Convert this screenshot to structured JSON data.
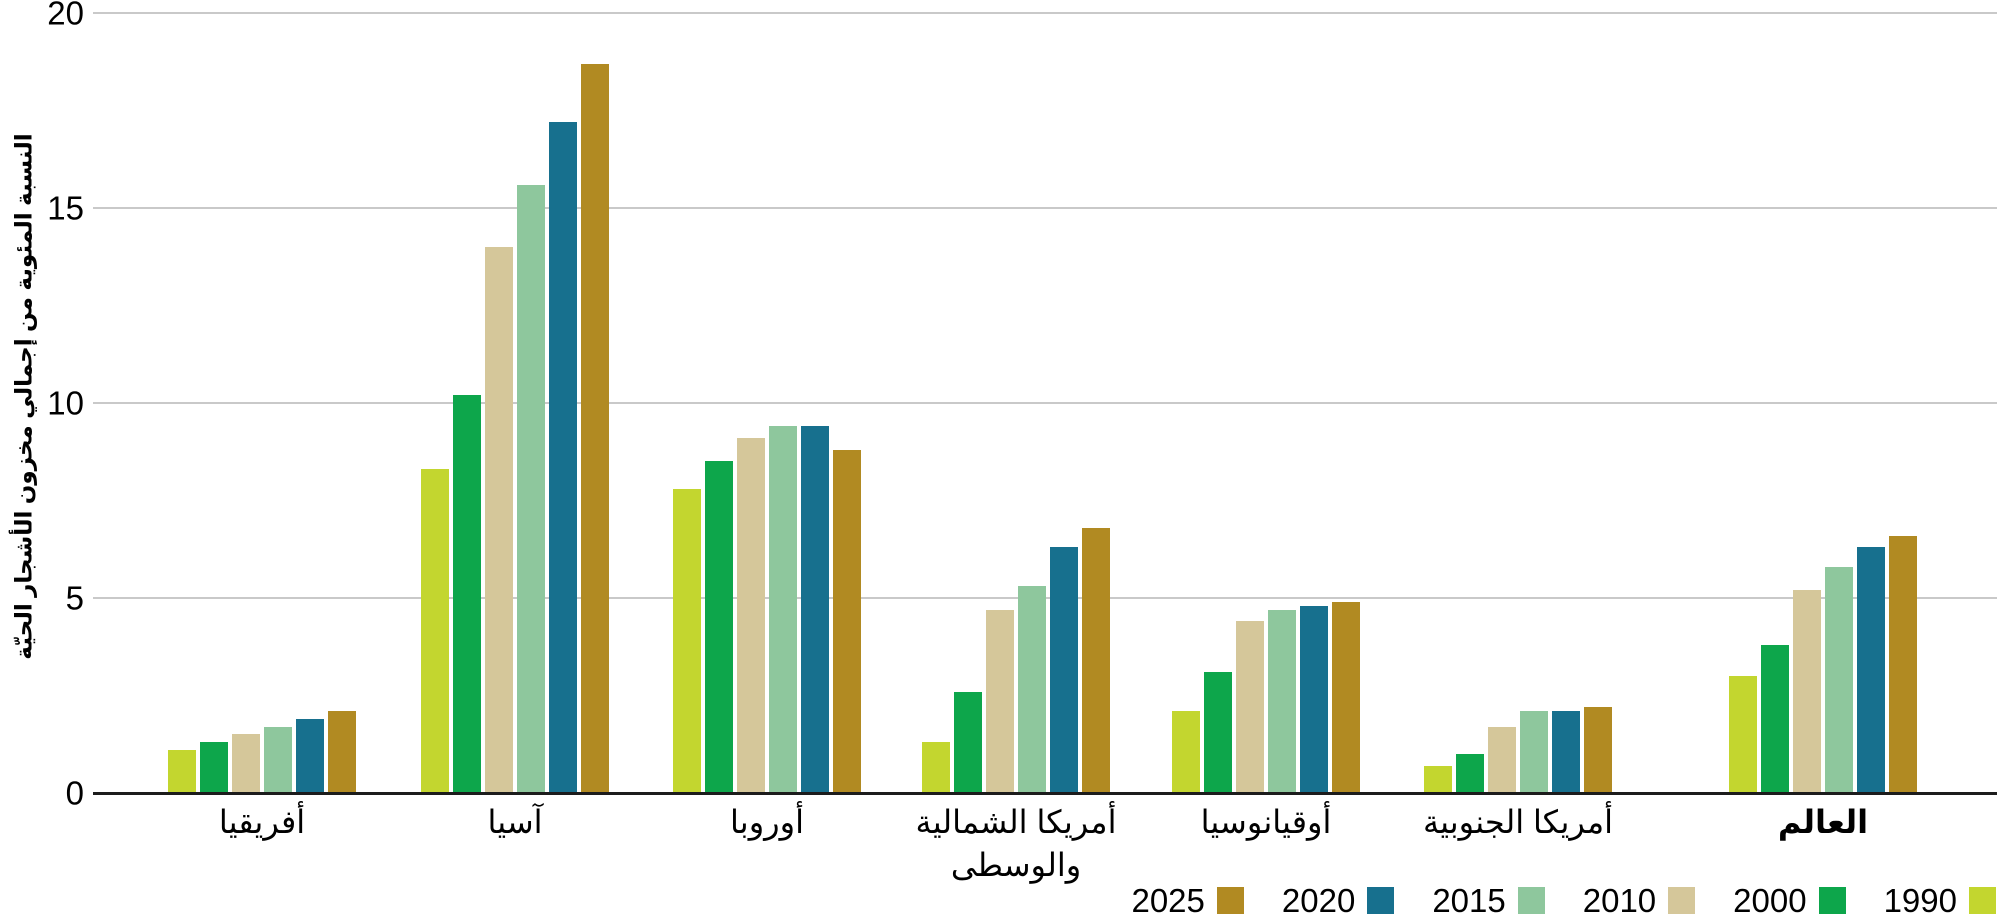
{
  "chart_data": {
    "type": "bar",
    "title": "",
    "ylabel": "النسبة المئوية من إجمالي مخزون الأشجار الحيّة",
    "xlabel": "",
    "ylim": [
      0,
      20
    ],
    "yticks": [
      "0",
      "5",
      "10",
      "15",
      "20"
    ],
    "grid": true,
    "legend_position": "bottom-right",
    "categories": [
      "أفريقيا",
      "آسيا",
      "أوروبا",
      "أمريكا الشمالية والوسطى",
      "أوقيانوسيا",
      "أمريكا الجنوبية",
      "العالم"
    ],
    "category_display": [
      {
        "lines": [
          "أفريقيا"
        ],
        "bold": false
      },
      {
        "lines": [
          "آسيا"
        ],
        "bold": false
      },
      {
        "lines": [
          "أوروبا"
        ],
        "bold": false
      },
      {
        "lines": [
          "أمريكا الشمالية",
          "والوسطى"
        ],
        "bold": false
      },
      {
        "lines": [
          "أوقيانوسيا"
        ],
        "bold": false
      },
      {
        "lines": [
          "أمريكا الجنوبية"
        ],
        "bold": false
      },
      {
        "lines": [
          "العالم"
        ],
        "bold": true
      }
    ],
    "series": [
      {
        "name": "1990",
        "color": "#C3D62F",
        "values": [
          1.1,
          8.3,
          7.8,
          1.3,
          2.1,
          0.7,
          3.0
        ]
      },
      {
        "name": "2000",
        "color": "#0DA64B",
        "values": [
          1.3,
          10.2,
          8.5,
          2.6,
          3.1,
          1.0,
          3.8
        ]
      },
      {
        "name": "2010",
        "color": "#D5C79A",
        "values": [
          1.5,
          14.0,
          9.1,
          4.7,
          4.4,
          1.7,
          5.2
        ]
      },
      {
        "name": "2015",
        "color": "#8EC79D",
        "values": [
          1.7,
          15.6,
          9.4,
          5.3,
          4.7,
          2.1,
          5.8
        ]
      },
      {
        "name": "2020",
        "color": "#17708E",
        "values": [
          1.9,
          17.2,
          9.4,
          6.3,
          4.8,
          2.1,
          6.3
        ]
      },
      {
        "name": "2025",
        "color": "#B18A22",
        "values": [
          2.1,
          18.7,
          8.8,
          6.8,
          4.9,
          2.2,
          6.6
        ]
      }
    ],
    "legend_order": [
      "2025",
      "2020",
      "2015",
      "2010",
      "2000",
      "1990"
    ],
    "axis_colors": {
      "gridline": "#c9c9c9",
      "axis_line": "#1c1c1c"
    }
  }
}
